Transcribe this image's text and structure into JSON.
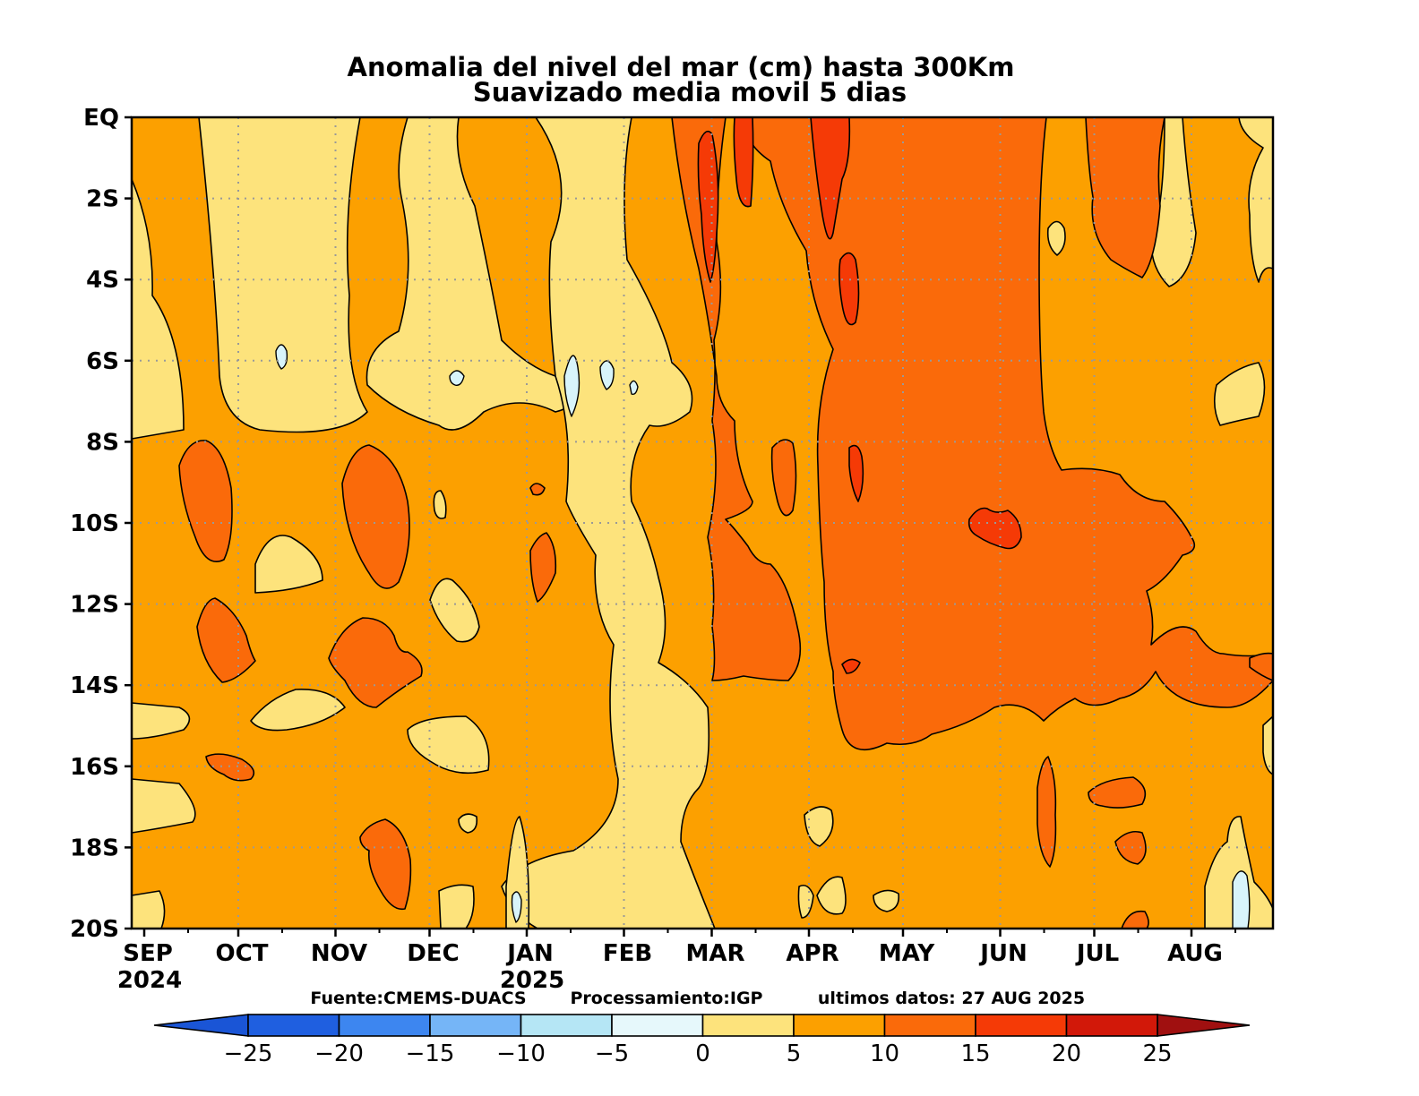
{
  "chart_data": {
    "type": "heatmap",
    "title": "Anomalia del nivel del mar (cm) hasta 300Km",
    "subtitle": "Suavizado media movil 5 dias",
    "x_axis": {
      "ticks": [
        "SEP",
        "OCT",
        "NOV",
        "DEC",
        "JAN",
        "FEB",
        "MAR",
        "APR",
        "MAY",
        "JUN",
        "JUL",
        "AUG"
      ],
      "year_labels": [
        {
          "year": "2024",
          "at_tick": "SEP"
        },
        {
          "year": "2025",
          "at_tick": "JAN"
        }
      ],
      "range": [
        "2024-08-28",
        "2025-08-27"
      ]
    },
    "y_axis": {
      "ticks": [
        "EQ",
        "2S",
        "4S",
        "6S",
        "8S",
        "10S",
        "12S",
        "14S",
        "16S",
        "18S",
        "20S"
      ],
      "range_deg_south": [
        0,
        20
      ]
    },
    "grid": "dotted",
    "colorbar": {
      "labels": [
        "−25",
        "−20",
        "−15",
        "−10",
        "−5",
        "0",
        "5",
        "10",
        "15",
        "20",
        "25"
      ],
      "bounds": [
        -25,
        -20,
        -15,
        -10,
        -5,
        0,
        5,
        10,
        15,
        20,
        25
      ],
      "colors": [
        "#1f5fe0",
        "#3d86f0",
        "#75b5f7",
        "#b5e6f5",
        "#e6f8fb",
        "#fde37c",
        "#fca000",
        "#fa6a0a",
        "#f53a06",
        "#d21809"
      ],
      "under_color": "#1a55d6",
      "over_color": "#a01010"
    },
    "regions_approx": [
      {
        "period": "SEP 2024 – FEB 2025",
        "lat": "EQ–8S",
        "value_range_cm": "0 to 5 (light yellow) with 5–10 bands"
      },
      {
        "period": "SEP 2024 – FEB 2025",
        "lat": "8S–20S",
        "value_range_cm": "5 to 10, patches 10–15"
      },
      {
        "period": "JAN – FEB 2025",
        "lat": "EQ–20S",
        "value_range_cm": "0 to 5, small patches -5 to 0"
      },
      {
        "period": "MAR – JUN 2025",
        "lat": "EQ–15S",
        "value_range_cm": "10 to 15, cores 15–20"
      },
      {
        "period": "JUL – AUG 2025",
        "lat": "EQ–20S",
        "value_range_cm": "5 to 10, patches 0–5 and 10–15"
      }
    ],
    "last_data_date": "2025-08-27"
  },
  "footer": {
    "source": "Fuente:CMEMS-DUACS",
    "processing": "Processamiento:IGP",
    "last_data": "ultimos  datos: 27 AUG 2025"
  }
}
